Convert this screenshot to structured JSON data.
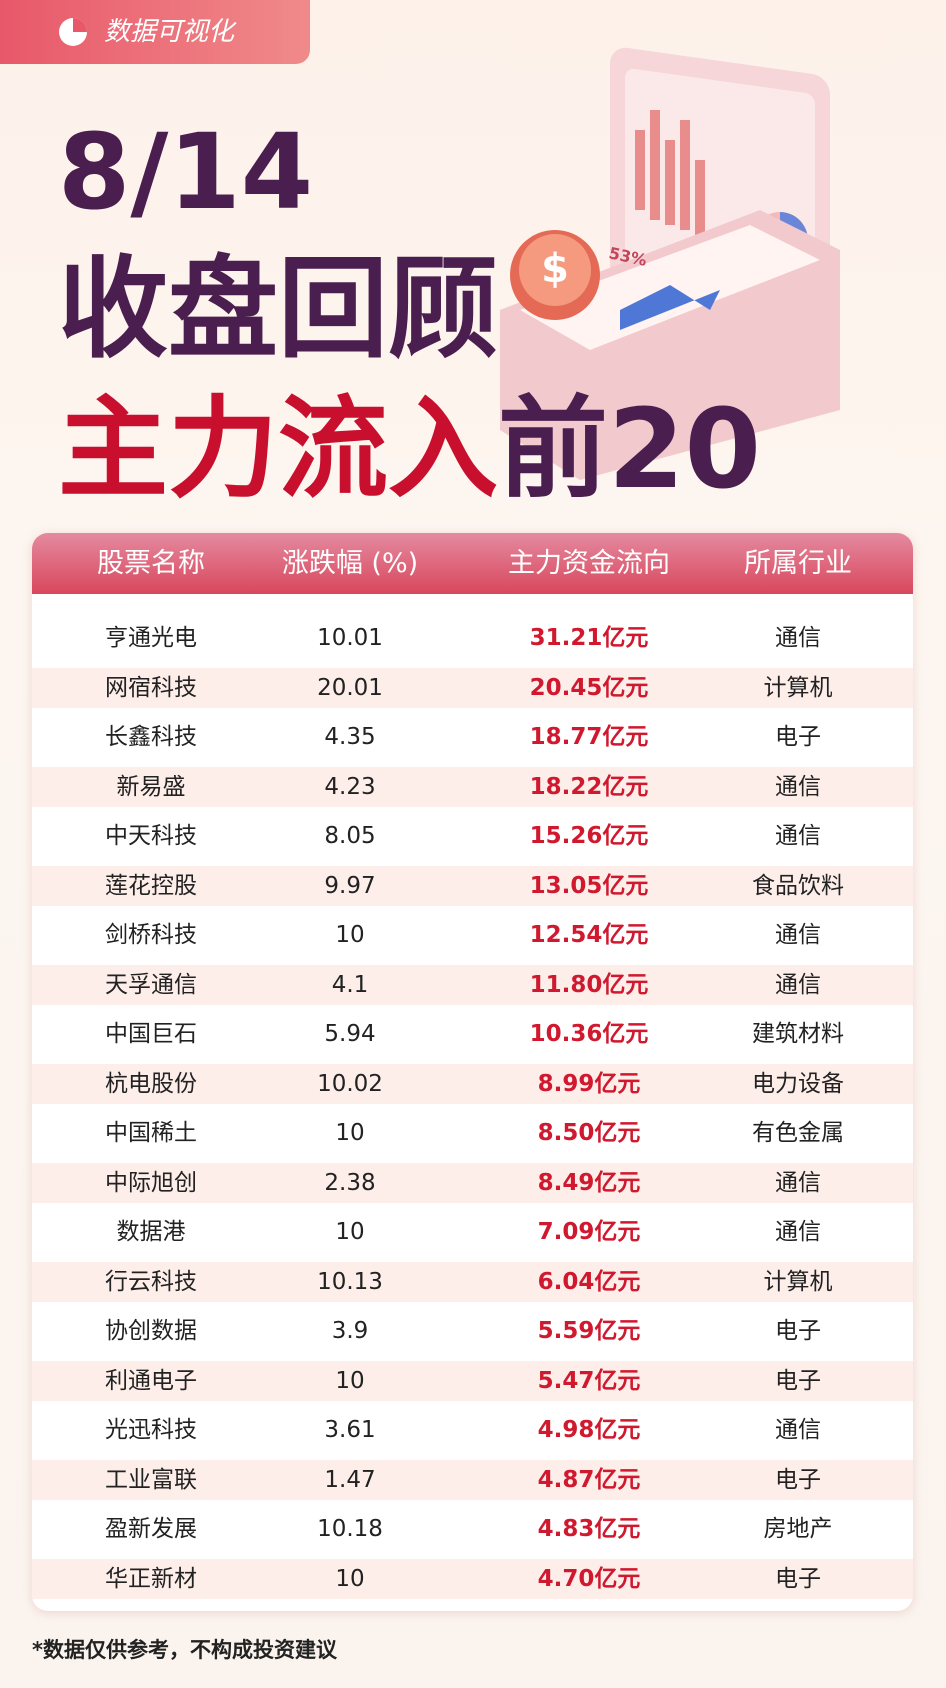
{
  "badge": "数据可视化",
  "title": {
    "date": "8/14",
    "line1": "收盘回顾",
    "line2_highlight": "主力流入",
    "line2_rest": "前20"
  },
  "illustration": {
    "label": "53%"
  },
  "table": {
    "columns": [
      "股票名称",
      "涨跌幅 (%)",
      "主力资金流向",
      "所属行业"
    ],
    "rows": [
      [
        "亨通光电",
        "10.01",
        "31.21亿元",
        "通信"
      ],
      [
        "网宿科技",
        "20.01",
        "20.45亿元",
        "计算机"
      ],
      [
        "长鑫科技",
        "4.35",
        "18.77亿元",
        "电子"
      ],
      [
        "新易盛",
        "4.23",
        "18.22亿元",
        "通信"
      ],
      [
        "中天科技",
        "8.05",
        "15.26亿元",
        "通信"
      ],
      [
        "莲花控股",
        "9.97",
        "13.05亿元",
        "食品饮料"
      ],
      [
        "剑桥科技",
        "10",
        "12.54亿元",
        "通信"
      ],
      [
        "天孚通信",
        "4.1",
        "11.80亿元",
        "通信"
      ],
      [
        "中国巨石",
        "5.94",
        "10.36亿元",
        "建筑材料"
      ],
      [
        "杭电股份",
        "10.02",
        "8.99亿元",
        "电力设备"
      ],
      [
        "中国稀土",
        "10",
        "8.50亿元",
        "有色金属"
      ],
      [
        "中际旭创",
        "2.38",
        "8.49亿元",
        "通信"
      ],
      [
        "数据港",
        "10",
        "7.09亿元",
        "通信"
      ],
      [
        "行云科技",
        "10.13",
        "6.04亿元",
        "计算机"
      ],
      [
        "协创数据",
        "3.9",
        "5.59亿元",
        "电子"
      ],
      [
        "利通电子",
        "10",
        "5.47亿元",
        "电子"
      ],
      [
        "光迅科技",
        "3.61",
        "4.98亿元",
        "通信"
      ],
      [
        "工业富联",
        "1.47",
        "4.87亿元",
        "电子"
      ],
      [
        "盈新发展",
        "10.18",
        "4.83亿元",
        "房地产"
      ],
      [
        "华正新材",
        "10",
        "4.70亿元",
        "电子"
      ]
    ]
  },
  "footnote": "*数据仅供参考，不构成投资建议"
}
